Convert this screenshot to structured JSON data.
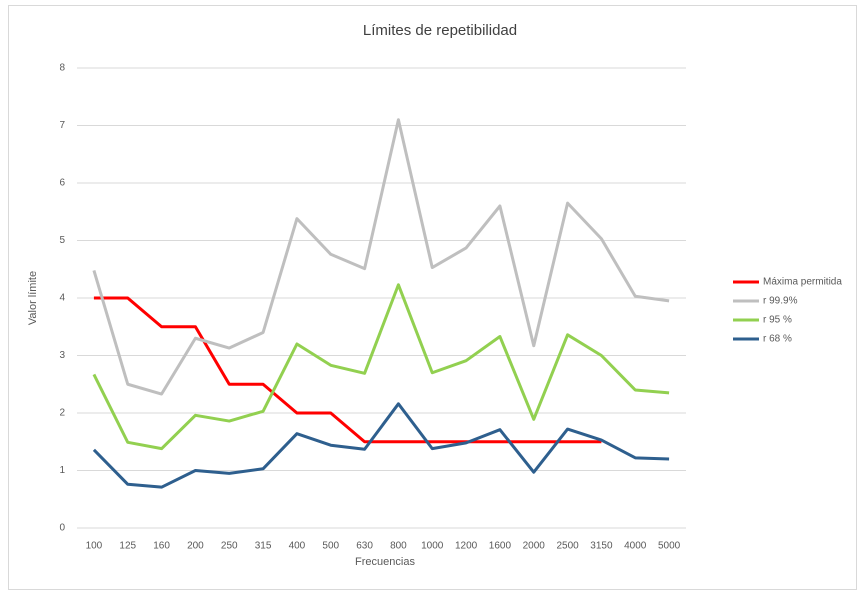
{
  "chart_data": {
    "type": "line",
    "title": "Límites de repetibilidad",
    "x_label": "Frecuencias",
    "y_label": "Valor límite",
    "categories": [
      "100",
      "125",
      "160",
      "200",
      "250",
      "315",
      "400",
      "500",
      "630",
      "800",
      "1000",
      "1200",
      "1600",
      "2000",
      "2500",
      "3150",
      "4000",
      "5000"
    ],
    "series": [
      {
        "name": "Máxima permitida",
        "color": "#ff0000",
        "values": [
          4,
          4,
          3.5,
          3.5,
          2.5,
          2.5,
          2,
          2,
          1.5,
          1.5,
          1.5,
          1.5,
          1.5,
          1.5,
          1.5,
          1.5,
          null,
          null
        ]
      },
      {
        "name": "r 99.9%",
        "color": "#bfbfbf",
        "values": [
          4.48,
          2.5,
          2.33,
          3.3,
          3.13,
          3.4,
          5.38,
          4.76,
          4.51,
          7.1,
          4.53,
          4.87,
          5.6,
          3.17,
          5.65,
          5.03,
          4.03,
          3.95
        ]
      },
      {
        "name": "r 95 %",
        "color": "#92d050",
        "values": [
          2.67,
          1.49,
          1.38,
          1.96,
          1.86,
          2.03,
          3.2,
          2.83,
          2.69,
          4.23,
          2.7,
          2.91,
          3.33,
          1.89,
          3.36,
          3.0,
          2.4,
          2.35
        ]
      },
      {
        "name": "r 68 %",
        "color": "#2e5f8e",
        "values": [
          1.36,
          0.76,
          0.71,
          1.0,
          0.95,
          1.03,
          1.64,
          1.44,
          1.37,
          2.16,
          1.38,
          1.48,
          1.71,
          0.97,
          1.72,
          1.53,
          1.22,
          1.2
        ]
      }
    ],
    "ylim": [
      0,
      8
    ],
    "yticks": [
      0,
      1,
      2,
      3,
      4,
      5,
      6,
      7,
      8
    ],
    "grid": true,
    "legend": "right"
  }
}
